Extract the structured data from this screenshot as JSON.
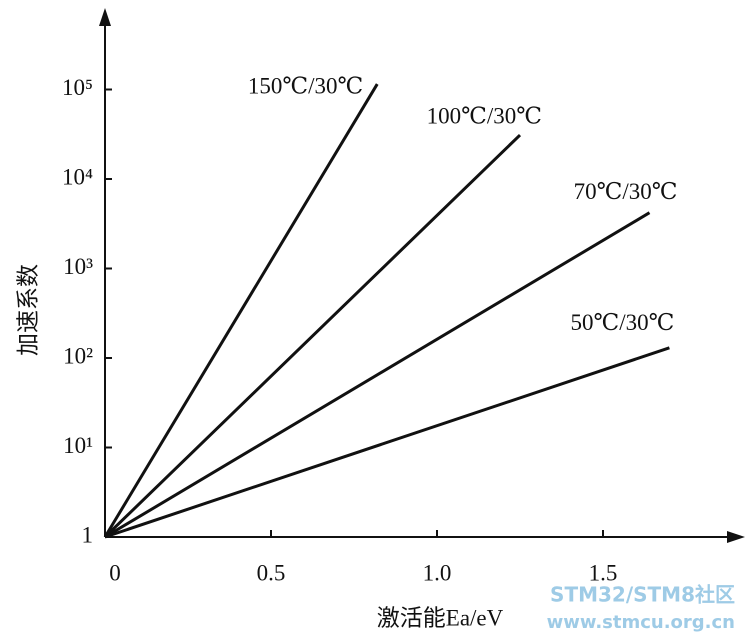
{
  "chart_data": {
    "type": "line",
    "log_y": true,
    "x_label": "激活能Ea/eV",
    "y_label": "加速系数",
    "xlim": [
      0,
      1.9
    ],
    "ylim": [
      1,
      800000
    ],
    "xticks": [
      0,
      0.5,
      {
        "value": 1,
        "label": "1.0"
      },
      1.5
    ],
    "yticks": [
      1,
      {
        "value": 10,
        "label": "10¹"
      },
      {
        "value": 100,
        "label": "10²"
      },
      {
        "value": 1000,
        "label": "10³"
      },
      {
        "value": 10000,
        "label": "10⁴"
      },
      {
        "value": 100000,
        "label": "10⁵"
      }
    ],
    "series": [
      {
        "name": "150℃/30℃",
        "color": "#111111",
        "x": [
          0,
          0.82
        ],
        "values": [
          1,
          115000
        ]
      },
      {
        "name": "100℃/30℃",
        "color": "#111111",
        "x": [
          0,
          1.25
        ],
        "values": [
          1,
          31000
        ]
      },
      {
        "name": "70℃/30℃",
        "color": "#111111",
        "x": [
          0,
          1.64
        ],
        "values": [
          1,
          4200
        ]
      },
      {
        "name": "50℃/30℃",
        "color": "#111111",
        "x": [
          0,
          1.7
        ],
        "values": [
          1,
          130
        ]
      }
    ],
    "watermark": [
      "STM32/STM8社区",
      "www.stmcu.org.cn"
    ]
  }
}
